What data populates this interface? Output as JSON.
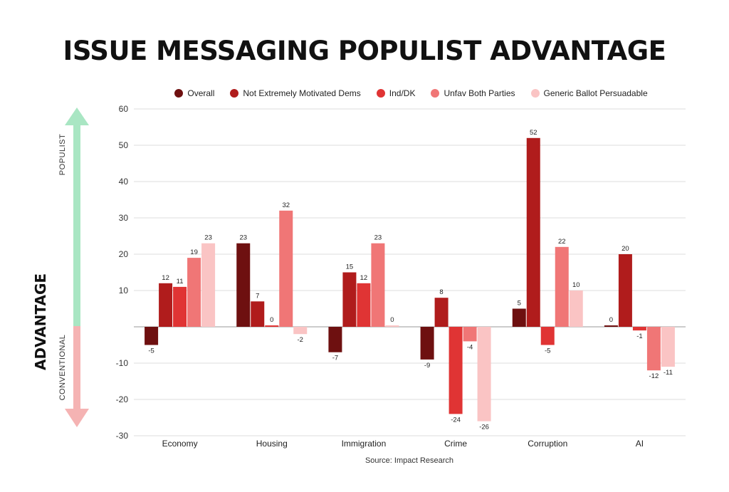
{
  "chart_data": {
    "type": "bar",
    "title": "ISSUE MESSAGING POPULIST ADVANTAGE",
    "ylabel": "ADVANTAGE",
    "ylabel_top": "POPULIST",
    "ylabel_bottom": "CONVENTIONAL",
    "source": "Source: Impact Research",
    "ylim": [
      -30,
      60
    ],
    "yticks": [
      -30,
      -20,
      -10,
      10,
      20,
      30,
      40,
      50,
      60
    ],
    "grid": true,
    "legend_position": "top",
    "categories": [
      "Economy",
      "Housing",
      "Immigration",
      "Crime",
      "Corruption",
      "AI"
    ],
    "series": [
      {
        "name": "Overall",
        "color": "#6e1010",
        "values": [
          -5,
          23,
          -7,
          -9,
          5,
          0
        ]
      },
      {
        "name": "Not Extremely Motivated Dems",
        "color": "#b01c1c",
        "values": [
          12,
          7,
          15,
          8,
          52,
          20
        ]
      },
      {
        "name": "Ind/DK",
        "color": "#e03434",
        "values": [
          11,
          0,
          12,
          -24,
          -5,
          -1
        ]
      },
      {
        "name": "Unfav Both Parties",
        "color": "#f07676",
        "values": [
          19,
          32,
          23,
          -4,
          22,
          -12
        ]
      },
      {
        "name": "Generic Ballot Persuadable",
        "color": "#fac4c4",
        "values": [
          23,
          -2,
          0,
          -26,
          10,
          -11
        ]
      }
    ],
    "arrow_colors": {
      "top": "#a9e6c3",
      "bottom": "#f5b3b3"
    }
  }
}
